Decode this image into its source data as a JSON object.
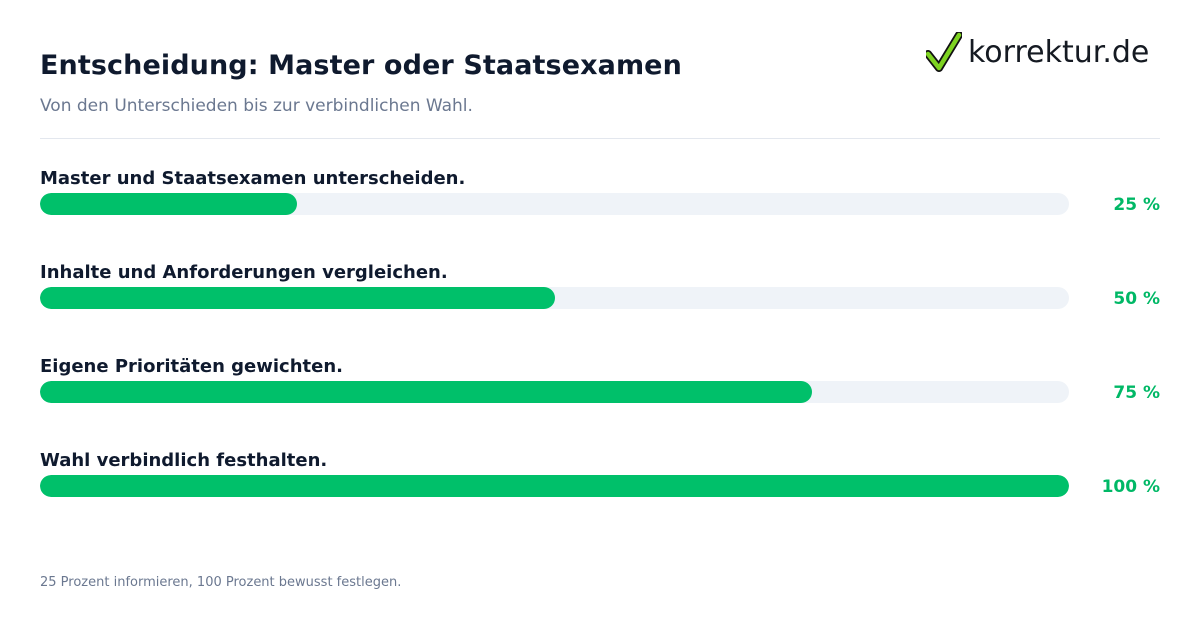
{
  "header": {
    "title": "Entscheidung: Master oder Staatsexamen",
    "subtitle": "Von den Unterschieden bis zur verbindlichen Wahl."
  },
  "logo": {
    "text": "korrektur.de",
    "icon": "checkmark-icon",
    "icon_color": "#7ed321"
  },
  "chart_data": {
    "type": "bar",
    "orientation": "horizontal",
    "categories": [
      "Master und Staatsexamen unterscheiden.",
      "Inhalte und Anforderungen vergleichen.",
      "Eigene Prioritäten gewichten.",
      "Wahl verbindlich festhalten."
    ],
    "values": [
      25,
      50,
      75,
      100
    ],
    "value_labels": [
      "25 %",
      "50 %",
      "75 %",
      "100 %"
    ],
    "xlim": [
      0,
      100
    ],
    "grid": false
  },
  "colors": {
    "bar": "#00c06a",
    "track": "#eff3f8",
    "value_text": "#00b866",
    "title": "#0f1a2e"
  },
  "footer": {
    "note": "25 Prozent informieren, 100 Prozent bewusst festlegen."
  }
}
